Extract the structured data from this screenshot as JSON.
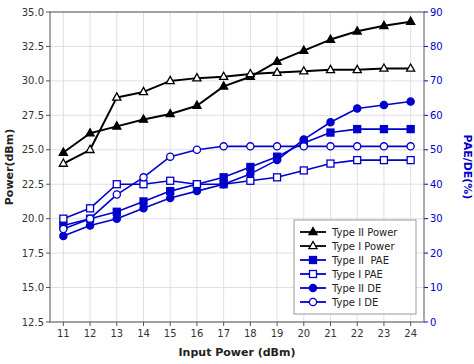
{
  "chart_data": {
    "type": "line",
    "xlabel": "Input Power (dBm)",
    "ylabel": "Power(dBm)",
    "y2label": "PAE/DE(%)",
    "x": [
      11,
      12,
      13,
      14,
      15,
      16,
      17,
      18,
      19,
      20,
      21,
      22,
      23,
      24
    ],
    "xlim": [
      10.5,
      24.5
    ],
    "xticks": [
      11,
      12,
      13,
      14,
      15,
      16,
      17,
      18,
      19,
      20,
      21,
      22,
      23,
      24
    ],
    "ylim": [
      12.5,
      35.0
    ],
    "yticks": [
      12.5,
      {
        "value": 15,
        "label": "15.0"
      },
      17.5,
      {
        "value": 20,
        "label": "20.0"
      },
      22.5,
      {
        "value": 25,
        "label": "25.0"
      },
      27.5,
      {
        "value": 30,
        "label": "30.0"
      },
      32.5,
      {
        "value": 35,
        "label": "35.0"
      }
    ],
    "y2lim": [
      0,
      90
    ],
    "y2ticks": [
      0,
      10,
      20,
      30,
      40,
      50,
      60,
      70,
      80,
      90
    ],
    "grid": true,
    "legend": "lower right",
    "series": [
      {
        "name": "Type II Power",
        "color": "#000000",
        "marker": "triangle",
        "line_style": "solid",
        "values": [
          24.8,
          26.2,
          26.7,
          27.2,
          27.6,
          28.2,
          29.6,
          30.3,
          31.4,
          32.2,
          33.0,
          33.6,
          34.0,
          34.3
        ]
      },
      {
        "name": "Type I Power",
        "color": "#000000",
        "marker": "triangle-open",
        "line_style": "solid",
        "values": [
          24.0,
          25.0,
          28.8,
          29.2,
          30.0,
          30.2,
          30.3,
          30.5,
          30.6,
          30.7,
          30.8,
          30.8,
          30.9,
          30.9
        ]
      },
      {
        "name": "Type II  PAE",
        "color": "#0000cc",
        "marker": "square",
        "line_style": "solid",
        "axis": "y2",
        "values": [
          28,
          30,
          32,
          35,
          38,
          40,
          42,
          45,
          48,
          52,
          55,
          56,
          56,
          56
        ]
      },
      {
        "name": "Type I PAE",
        "color": "#0000cc",
        "marker": "square-open",
        "line_style": "solid",
        "axis": "y2",
        "values": [
          30,
          33,
          40,
          40,
          41,
          40,
          40,
          41,
          42,
          44,
          46,
          47,
          47,
          47
        ]
      },
      {
        "name": "Type II DE",
        "color": "#0000cc",
        "marker": "circle",
        "line_style": "solid",
        "axis": "y2",
        "values": [
          25,
          28,
          30,
          33,
          36,
          38,
          40,
          43,
          47,
          53,
          58,
          62,
          63,
          64
        ]
      },
      {
        "name": "Type I DE",
        "color": "#0000cc",
        "marker": "circle-open",
        "line_style": "solid",
        "axis": "y2",
        "values": [
          27,
          30,
          37,
          42,
          48,
          50,
          51,
          51,
          51,
          51,
          51,
          51,
          51,
          51
        ]
      }
    ]
  }
}
